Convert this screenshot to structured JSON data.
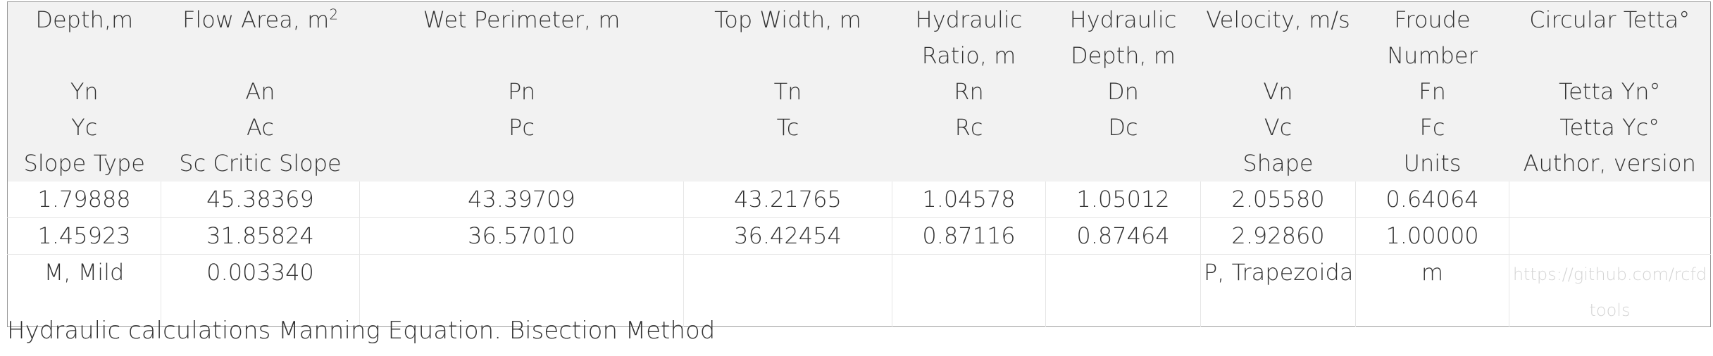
{
  "table": {
    "header_row1": [
      "Depth,m",
      "Flow Area, m²",
      "Wet Perimeter, m",
      "Top Width, m",
      "Hydraulic Ratio, m",
      "Hydraulic Depth, m",
      "Velocity, m/s",
      "Froude Number",
      "Circular Tetta°"
    ],
    "header_row2": [
      "Yn",
      "An",
      "Pn",
      "Tn",
      "Rn",
      "Dn",
      "Vn",
      "Fn",
      "Tetta Yn°"
    ],
    "header_row3": [
      "Yc",
      "Ac",
      "Pc",
      "Tc",
      "Rc",
      "Dc",
      "Vc",
      "Fc",
      "Tetta Yc°"
    ],
    "header_row4": [
      "Slope Type",
      "Sc Critic Slope",
      "",
      "",
      "",
      "",
      "Shape",
      "Units",
      "Author, version"
    ],
    "rows": [
      [
        "1.79888",
        "45.38369",
        "43.39709",
        "43.21765",
        "1.04578",
        "1.05012",
        "2.05580",
        "0.64064",
        ""
      ],
      [
        "1.45923",
        "31.85824",
        "36.57010",
        "36.42454",
        "0.87116",
        "0.87464",
        "2.92860",
        "1.00000",
        ""
      ],
      [
        "M, Mild",
        "0.003340",
        "",
        "",
        "",
        "",
        "P, Trapezoidal",
        "m",
        "https://github.com/rcfdtools"
      ]
    ]
  },
  "caption": "Hydraulic calculations Manning Equation. Bisection Method"
}
